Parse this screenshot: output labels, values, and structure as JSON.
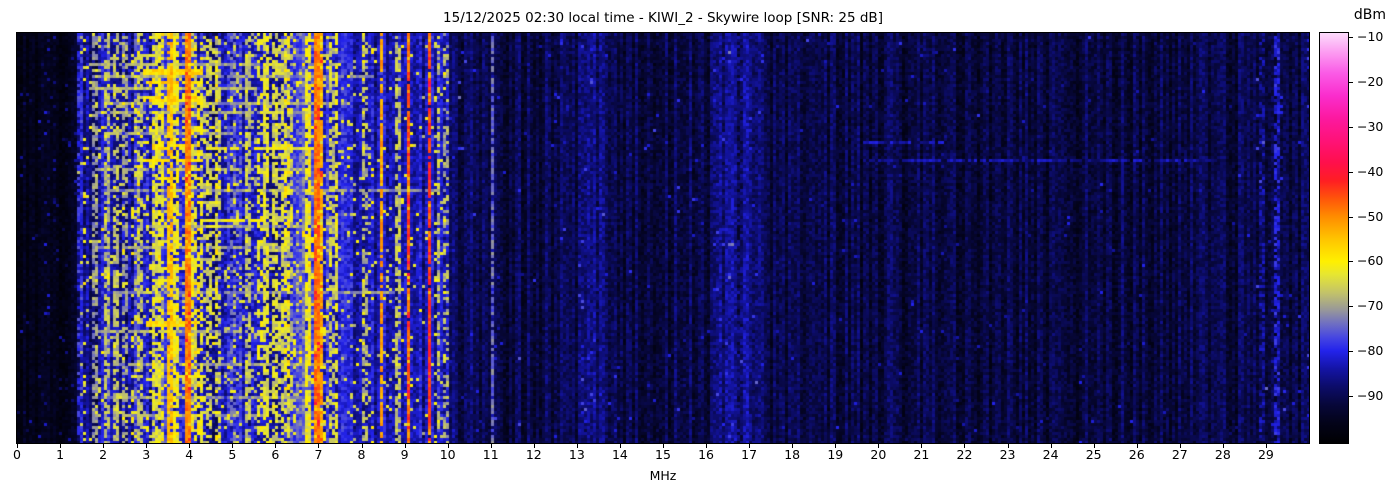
{
  "title": "15/12/2025 02:30 local time - KIWI_2 - Skywire loop [SNR: 25 dB]",
  "chart_data": {
    "type": "heatmap",
    "subtype": "radio-spectrogram-waterfall",
    "title": "15/12/2025 02:30 local time - KIWI_2 - Skywire loop [SNR: 25 dB]",
    "xlabel": "MHz",
    "ylabel": "",
    "x_range": [
      0,
      30
    ],
    "x_ticks": [
      0,
      1,
      2,
      3,
      4,
      5,
      6,
      7,
      8,
      9,
      10,
      11,
      12,
      13,
      14,
      15,
      16,
      17,
      18,
      19,
      20,
      21,
      22,
      23,
      24,
      25,
      26,
      27,
      28,
      29
    ],
    "y_axis": "time (no tick labels shown)",
    "grid": false,
    "colorbar": {
      "label": "dBm",
      "ticks": [
        -10,
        -20,
        -30,
        -40,
        -50,
        -60,
        -70,
        -80,
        -90
      ],
      "range": [
        -100.6,
        -9
      ]
    },
    "colormap_stops": [
      [
        -101,
        [
          0,
          0,
          0
        ]
      ],
      [
        -96,
        [
          3,
          3,
          26
        ]
      ],
      [
        -92,
        [
          7,
          7,
          58
        ]
      ],
      [
        -88,
        [
          12,
          12,
          105
        ]
      ],
      [
        -84,
        [
          20,
          20,
          165
        ]
      ],
      [
        -80,
        [
          35,
          35,
          235
        ]
      ],
      [
        -77,
        [
          70,
          70,
          225
        ]
      ],
      [
        -74,
        [
          110,
          110,
          195
        ]
      ],
      [
        -71,
        [
          150,
          150,
          155
        ]
      ],
      [
        -67,
        [
          195,
          195,
          105
        ]
      ],
      [
        -63,
        [
          230,
          230,
          50
        ]
      ],
      [
        -60,
        [
          255,
          240,
          0
        ]
      ],
      [
        -55,
        [
          255,
          196,
          0
        ]
      ],
      [
        -50,
        [
          255,
          140,
          0
        ]
      ],
      [
        -46,
        [
          255,
          85,
          10
        ]
      ],
      [
        -42,
        [
          255,
          30,
          35
        ]
      ],
      [
        -38,
        [
          255,
          15,
          75
        ]
      ],
      [
        -33,
        [
          255,
          18,
          120
        ]
      ],
      [
        -28,
        [
          252,
          25,
          160
        ]
      ],
      [
        -23,
        [
          250,
          45,
          205
        ]
      ],
      [
        -18,
        [
          250,
          90,
          230
        ]
      ],
      [
        -13,
        [
          252,
          160,
          242
        ]
      ],
      [
        -9,
        [
          253,
          220,
          252
        ]
      ]
    ],
    "noise_bands": [
      {
        "f0": 0.0,
        "f1": 1.42,
        "base": -96,
        "var": 2.5,
        "sp": 0.04,
        "sl": -87
      },
      {
        "f0": 1.42,
        "f1": 1.95,
        "base": -86,
        "var": 5,
        "sp": 0.1,
        "sl": -64
      },
      {
        "f0": 1.95,
        "f1": 2.3,
        "base": -83,
        "var": 5,
        "sp": 0.12,
        "sl": -63
      },
      {
        "f0": 2.3,
        "f1": 2.62,
        "base": -87,
        "var": 5,
        "sp": 0.08,
        "sl": -64
      },
      {
        "f0": 2.62,
        "f1": 3.05,
        "base": -82,
        "var": 6,
        "sp": 0.22,
        "sl": -63
      },
      {
        "f0": 3.05,
        "f1": 4.35,
        "base": -80,
        "var": 6,
        "sp": 0.32,
        "sl": -62
      },
      {
        "f0": 4.35,
        "f1": 5.1,
        "base": -83,
        "var": 6,
        "sp": 0.16,
        "sl": -64
      },
      {
        "f0": 5.1,
        "f1": 5.65,
        "base": -82,
        "var": 6,
        "sp": 0.14,
        "sl": -66
      },
      {
        "f0": 5.65,
        "f1": 6.55,
        "base": -81,
        "var": 6,
        "sp": 0.26,
        "sl": -63
      },
      {
        "f0": 6.55,
        "f1": 7.08,
        "base": -79,
        "var": 6,
        "sp": 0.3,
        "sl": -61
      },
      {
        "f0": 7.08,
        "f1": 7.62,
        "base": -81,
        "var": 5,
        "sp": 0.13,
        "sl": -64
      },
      {
        "f0": 7.62,
        "f1": 8.9,
        "base": -84,
        "var": 5,
        "sp": 0.09,
        "sl": -64
      },
      {
        "f0": 8.9,
        "f1": 10.05,
        "base": -84,
        "var": 5,
        "sp": 0.1,
        "sl": -63
      },
      {
        "f0": 10.05,
        "f1": 10.95,
        "base": -90,
        "var": 4,
        "sp": 0.015,
        "sl": -80
      },
      {
        "f0": 10.95,
        "f1": 11.15,
        "base": -89,
        "var": 4,
        "sp": 0.03,
        "sl": -78
      },
      {
        "f0": 11.15,
        "f1": 13.05,
        "base": -91,
        "var": 4,
        "sp": 0.012,
        "sl": -82
      },
      {
        "f0": 13.05,
        "f1": 13.75,
        "base": -88,
        "var": 4.5,
        "sp": 0.02,
        "sl": -80
      },
      {
        "f0": 13.75,
        "f1": 16.15,
        "base": -91,
        "var": 4,
        "sp": 0.012,
        "sl": -82
      },
      {
        "f0": 16.15,
        "f1": 17.3,
        "base": -87.5,
        "var": 4.5,
        "sp": 0.03,
        "sl": -79
      },
      {
        "f0": 17.3,
        "f1": 19.6,
        "base": -91,
        "var": 4,
        "sp": 0.01,
        "sl": -83
      },
      {
        "f0": 19.6,
        "f1": 28.7,
        "base": -91.5,
        "var": 4,
        "sp": 0.008,
        "sl": -84
      },
      {
        "f0": 28.7,
        "f1": 30.0,
        "base": -91,
        "var": 4,
        "sp": 0.02,
        "sl": -80
      }
    ],
    "carriers": [
      {
        "f": 1.47,
        "w": 0.02,
        "level": -74,
        "duty": 0.55
      },
      {
        "f": 1.81,
        "w": 0.022,
        "level": -66,
        "duty": 0.6
      },
      {
        "f": 2.1,
        "w": 0.025,
        "level": -63,
        "duty": 0.6
      },
      {
        "f": 2.28,
        "w": 0.025,
        "level": -62,
        "duty": 0.55
      },
      {
        "f": 2.5,
        "w": 0.022,
        "level": -65,
        "duty": 0.5
      },
      {
        "f": 2.88,
        "w": 0.025,
        "level": -62,
        "duty": 0.6
      },
      {
        "f": 3.2,
        "w": 0.03,
        "level": -59,
        "duty": 0.65
      },
      {
        "f": 3.33,
        "w": 0.028,
        "level": -58,
        "duty": 0.6
      },
      {
        "f": 3.55,
        "w": 0.04,
        "level": -50,
        "duty": 0.8
      },
      {
        "f": 3.7,
        "w": 0.028,
        "level": -57,
        "duty": 0.65
      },
      {
        "f": 3.97,
        "w": 0.055,
        "level": -44,
        "duty": 1.0
      },
      {
        "f": 4.13,
        "w": 0.025,
        "level": -60,
        "duty": 0.5
      },
      {
        "f": 4.47,
        "w": 0.028,
        "level": -60,
        "duty": 0.6
      },
      {
        "f": 4.65,
        "w": 0.022,
        "level": -62,
        "duty": 0.5
      },
      {
        "f": 5.0,
        "w": 0.028,
        "level": -70,
        "duty": 0.6
      },
      {
        "f": 5.35,
        "w": 0.028,
        "level": -62,
        "duty": 0.6
      },
      {
        "f": 5.62,
        "w": 0.022,
        "level": -63,
        "duty": 0.5
      },
      {
        "f": 5.8,
        "w": 0.025,
        "level": -59,
        "duty": 0.75
      },
      {
        "f": 6.0,
        "w": 0.028,
        "level": -60,
        "duty": 0.65
      },
      {
        "f": 6.18,
        "w": 0.025,
        "level": -60,
        "duty": 0.6
      },
      {
        "f": 6.32,
        "w": 0.022,
        "level": -62,
        "duty": 0.5
      },
      {
        "f": 6.78,
        "w": 0.025,
        "level": -57,
        "duty": 0.8
      },
      {
        "f": 6.95,
        "w": 0.045,
        "level": -43,
        "duty": 1.0
      },
      {
        "f": 7.05,
        "w": 0.03,
        "level": -47,
        "duty": 0.85
      },
      {
        "f": 7.3,
        "w": 0.025,
        "level": -62,
        "duty": 0.55
      },
      {
        "f": 7.42,
        "w": 0.02,
        "level": -64,
        "duty": 0.5
      },
      {
        "f": 8.1,
        "w": 0.025,
        "level": -63,
        "duty": 0.5
      },
      {
        "f": 8.46,
        "w": 0.03,
        "level": -52,
        "duty": 0.75
      },
      {
        "f": 8.85,
        "w": 0.025,
        "level": -62,
        "duty": 0.6
      },
      {
        "f": 9.09,
        "w": 0.032,
        "level": -46,
        "duty": 0.95
      },
      {
        "f": 9.58,
        "w": 0.032,
        "level": -44,
        "duty": 0.92
      },
      {
        "f": 9.78,
        "w": 0.02,
        "level": -67,
        "duty": 0.5
      },
      {
        "f": 9.95,
        "w": 0.02,
        "level": -64,
        "duty": 0.4
      },
      {
        "f": 11.05,
        "w": 0.02,
        "level": -74,
        "duty": 0.8
      },
      {
        "f": 16.55,
        "w": 0.035,
        "level": -81,
        "duty": 0.5
      },
      {
        "f": 16.78,
        "w": 0.03,
        "level": -82,
        "duty": 0.45
      },
      {
        "f": 28.9,
        "w": 0.03,
        "level": -80,
        "duty": 0.45
      },
      {
        "f": 29.25,
        "w": 0.035,
        "level": -76,
        "duty": 0.6
      }
    ],
    "events": [
      {
        "t": 0.075,
        "f0": 1.7,
        "f1": 6.3,
        "lv": -70
      },
      {
        "t": 0.09,
        "f0": 2.9,
        "f1": 4.3,
        "lv": -58
      },
      {
        "t": 0.105,
        "f0": 1.8,
        "f1": 8.3,
        "lv": -71
      },
      {
        "t": 0.115,
        "f0": 3.0,
        "f1": 4.2,
        "lv": -57
      },
      {
        "t": 0.13,
        "f0": 1.7,
        "f1": 5.6,
        "lv": -68
      },
      {
        "t": 0.15,
        "f0": 2.9,
        "f1": 4.35,
        "lv": -58
      },
      {
        "t": 0.165,
        "f0": 2.1,
        "f1": 7.7,
        "lv": -71
      },
      {
        "t": 0.19,
        "f0": 1.8,
        "f1": 6.9,
        "lv": -70
      },
      {
        "t": 0.24,
        "f0": 2.0,
        "f1": 5.0,
        "lv": -70
      },
      {
        "t": 0.265,
        "f0": 19.65,
        "f1": 21.5,
        "lv": -84
      },
      {
        "t": 0.27,
        "f0": 3.1,
        "f1": 4.1,
        "lv": -59
      },
      {
        "t": 0.275,
        "f0": 4.4,
        "f1": 6.9,
        "lv": -62
      },
      {
        "t": 0.305,
        "f0": 19.65,
        "f1": 27.8,
        "lv": -85
      },
      {
        "t": 0.31,
        "f0": 2.9,
        "f1": 4.3,
        "lv": -58
      },
      {
        "t": 0.33,
        "f0": 1.8,
        "f1": 6.8,
        "lv": -69
      },
      {
        "t": 0.38,
        "f0": 2.0,
        "f1": 9.8,
        "lv": -72
      },
      {
        "t": 0.45,
        "f0": 4.4,
        "f1": 6.6,
        "lv": -62
      },
      {
        "t": 0.47,
        "f0": 2.8,
        "f1": 7.4,
        "lv": -70
      },
      {
        "t": 0.52,
        "f0": 1.9,
        "f1": 6.2,
        "lv": -71
      },
      {
        "t": 0.57,
        "f0": 3.0,
        "f1": 4.4,
        "lv": -60
      },
      {
        "t": 0.63,
        "f0": 2.2,
        "f1": 8.8,
        "lv": -72
      },
      {
        "t": 0.7,
        "f0": 3.0,
        "f1": 4.2,
        "lv": -58
      },
      {
        "t": 0.72,
        "f0": 1.8,
        "f1": 5.2,
        "lv": -70
      },
      {
        "t": 0.8,
        "f0": 2.4,
        "f1": 7.2,
        "lv": -71
      },
      {
        "t": 0.88,
        "f0": 2.0,
        "f1": 6.6,
        "lv": -72
      },
      {
        "t": 0.93,
        "f0": 2.2,
        "f1": 5.8,
        "lv": -70
      }
    ]
  }
}
